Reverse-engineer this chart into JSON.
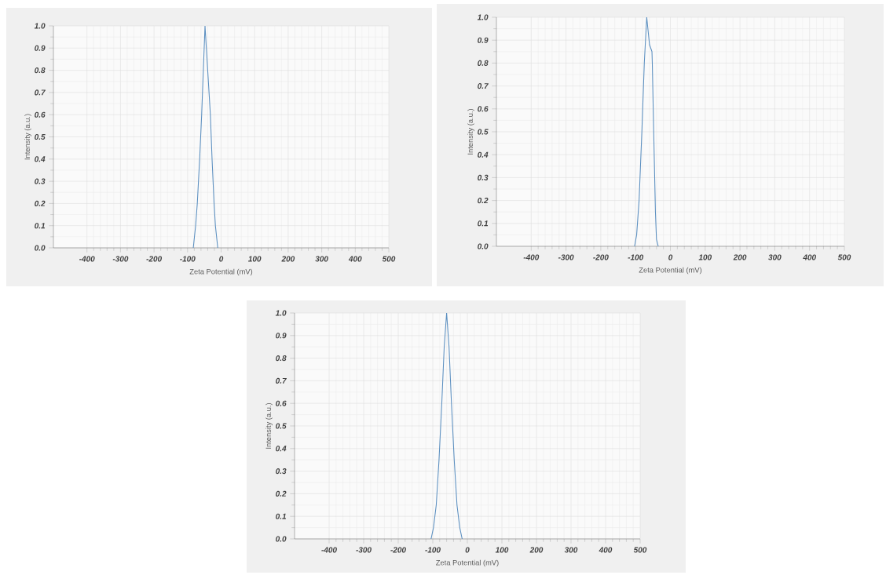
{
  "chart_data": [
    {
      "type": "line",
      "xlabel": "Zeta Potential (mV)",
      "ylabel": "Intensity (a.u.)",
      "color": "#5b8fc0",
      "grid": true,
      "xlim": [
        -500,
        500
      ],
      "ylim": [
        0,
        1
      ],
      "xticks": [
        -400,
        -300,
        -200,
        -100,
        0,
        100,
        200,
        300,
        400,
        500
      ],
      "yticks": [
        {
          "value": 0,
          "label": "0.0"
        },
        {
          "value": 0.1,
          "label": "0.1"
        },
        {
          "value": 0.2,
          "label": "0.2"
        },
        {
          "value": 0.3,
          "label": "0.3"
        },
        {
          "value": 0.4,
          "label": "0.4"
        },
        {
          "value": 0.5,
          "label": "0.5"
        },
        {
          "value": 0.6,
          "label": "0.6"
        },
        {
          "value": 0.7,
          "label": "0.7"
        },
        {
          "value": 0.8,
          "label": "0.8"
        },
        {
          "value": 0.9,
          "label": "0.9"
        },
        {
          "value": 1,
          "label": "1.0"
        }
      ],
      "x": [
        -83,
        -76,
        -71,
        -64,
        -58,
        -53,
        -48,
        -40,
        -32,
        -27,
        -21,
        -17,
        -10
      ],
      "values": [
        0,
        0.1,
        0.2,
        0.4,
        0.6,
        0.8,
        1,
        0.8,
        0.6,
        0.4,
        0.2,
        0.1,
        0
      ]
    },
    {
      "type": "line",
      "xlabel": "Zeta Potential (mV)",
      "ylabel": "Intensity (a.u.)",
      "color": "#5b8fc0",
      "grid": true,
      "xlim": [
        -500,
        500
      ],
      "ylim": [
        0,
        1
      ],
      "xticks": [
        -400,
        -300,
        -200,
        -100,
        0,
        100,
        200,
        300,
        400,
        500
      ],
      "yticks": [
        {
          "value": 0,
          "label": "0.0"
        },
        {
          "value": 0.1,
          "label": "0.1"
        },
        {
          "value": 0.2,
          "label": "0.2"
        },
        {
          "value": 0.3,
          "label": "0.3"
        },
        {
          "value": 0.4,
          "label": "0.4"
        },
        {
          "value": 0.5,
          "label": "0.5"
        },
        {
          "value": 0.6,
          "label": "0.6"
        },
        {
          "value": 0.7,
          "label": "0.7"
        },
        {
          "value": 0.8,
          "label": "0.8"
        },
        {
          "value": 0.9,
          "label": "0.9"
        },
        {
          "value": 1,
          "label": "1.0"
        }
      ],
      "x": [
        -103,
        -97,
        -90,
        -82,
        -75,
        -68,
        -60,
        -53,
        -52,
        -48,
        -43,
        -40,
        -35
      ],
      "values": [
        0,
        0.05,
        0.2,
        0.5,
        0.8,
        1,
        0.88,
        0.85,
        0.8,
        0.5,
        0.15,
        0.03,
        0
      ]
    },
    {
      "type": "line",
      "xlabel": "Zeta Potential (mV)",
      "ylabel": "Intensity (a.u.)",
      "color": "#5b8fc0",
      "grid": true,
      "xlim": [
        -500,
        500
      ],
      "ylim": [
        0,
        1
      ],
      "xticks": [
        -400,
        -300,
        -200,
        -100,
        0,
        100,
        200,
        300,
        400,
        500
      ],
      "yticks": [
        {
          "value": 0,
          "label": "0.0"
        },
        {
          "value": 0.1,
          "label": "0.1"
        },
        {
          "value": 0.2,
          "label": "0.2"
        },
        {
          "value": 0.3,
          "label": "0.3"
        },
        {
          "value": 0.4,
          "label": "0.4"
        },
        {
          "value": 0.5,
          "label": "0.5"
        },
        {
          "value": 0.6,
          "label": "0.6"
        },
        {
          "value": 0.7,
          "label": "0.7"
        },
        {
          "value": 0.8,
          "label": "0.8"
        },
        {
          "value": 0.9,
          "label": "0.9"
        },
        {
          "value": 1,
          "label": "1.0"
        }
      ],
      "x": [
        -105,
        -98,
        -90,
        -82,
        -74,
        -67,
        -60,
        -53,
        -46,
        -38,
        -30,
        -22,
        -15
      ],
      "values": [
        0,
        0.05,
        0.15,
        0.35,
        0.6,
        0.85,
        1,
        0.85,
        0.6,
        0.35,
        0.15,
        0.05,
        0
      ]
    }
  ]
}
